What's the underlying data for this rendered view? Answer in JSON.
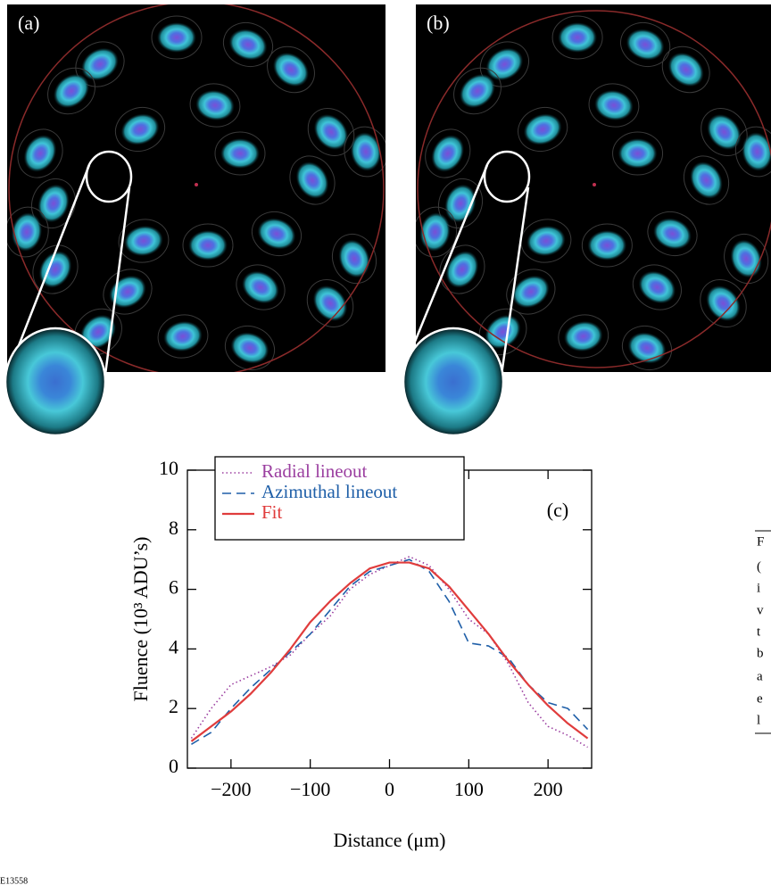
{
  "panels": [
    {
      "label": "(a)"
    },
    {
      "label": "(b)"
    }
  ],
  "chart_data": {
    "type": "line",
    "panel_label": "(c)",
    "x_label": "Distance (μm)",
    "y_label": "Fluence (10³ ADU’s)",
    "x": [
      -250,
      -225,
      -200,
      -175,
      -150,
      -125,
      -100,
      -75,
      -50,
      -25,
      0,
      25,
      50,
      75,
      100,
      125,
      150,
      175,
      200,
      225,
      250
    ],
    "series": [
      {
        "name": "Radial lineout",
        "color": "#9b3fa0",
        "dash": "dotted",
        "values": [
          1.0,
          2.0,
          2.8,
          3.1,
          3.4,
          3.8,
          4.5,
          5.1,
          6.0,
          6.5,
          6.8,
          7.1,
          6.8,
          6.0,
          5.0,
          4.5,
          3.5,
          2.2,
          1.4,
          1.1,
          0.7
        ]
      },
      {
        "name": "Azimuthal lineout",
        "color": "#1f5fa8",
        "dash": "dashed",
        "values": [
          0.8,
          1.2,
          2.0,
          2.7,
          3.3,
          3.9,
          4.5,
          5.3,
          6.1,
          6.6,
          6.8,
          7.0,
          6.6,
          5.6,
          4.2,
          4.1,
          3.7,
          2.8,
          2.2,
          2.0,
          1.3
        ]
      },
      {
        "name": "Fit",
        "color": "#e03c3c",
        "dash": "solid",
        "values": [
          0.9,
          1.4,
          1.9,
          2.5,
          3.2,
          4.0,
          4.9,
          5.6,
          6.2,
          6.7,
          6.9,
          6.9,
          6.7,
          6.1,
          5.3,
          4.5,
          3.6,
          2.8,
          2.1,
          1.5,
          1.0
        ]
      }
    ],
    "xlim": [
      -255,
      255
    ],
    "ylim": [
      0,
      10
    ],
    "xticks": [
      {
        "value": -200,
        "label": "−200"
      },
      {
        "value": -100,
        "label": "−100"
      },
      0,
      100,
      200
    ],
    "yticks": [
      0,
      2,
      4,
      6,
      8,
      10
    ],
    "grid": false,
    "legend": "top-left"
  },
  "caption": {
    "lines": [
      "F",
      "(",
      "i",
      "v",
      "t",
      "b",
      "a",
      "e",
      "l"
    ]
  },
  "figure_id": "E13558"
}
